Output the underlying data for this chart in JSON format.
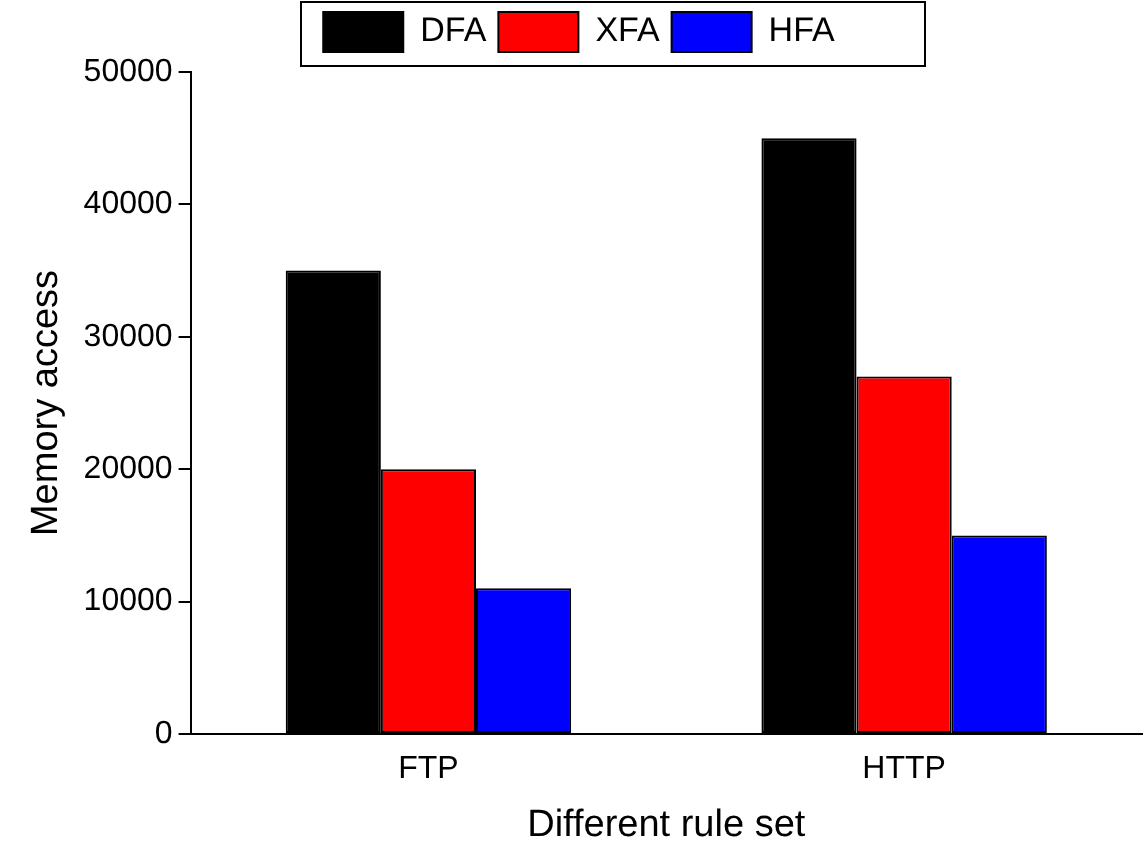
{
  "chart_data": {
    "type": "bar",
    "xlabel": "Different rule set",
    "ylabel": "Memory access",
    "categories": [
      "FTP",
      "HTTP"
    ],
    "series": [
      {
        "name": "DFA",
        "color": "#000000",
        "values": [
          35000,
          45000
        ]
      },
      {
        "name": "XFA",
        "color": "#ff0000",
        "values": [
          20000,
          27000
        ]
      },
      {
        "name": "HFA",
        "color": "#0000ff",
        "values": [
          11000,
          15000
        ]
      }
    ],
    "ylim": [
      0,
      50000
    ],
    "yticks": [
      0,
      10000,
      20000,
      30000,
      40000,
      50000
    ],
    "grid": false,
    "legend": "top"
  }
}
